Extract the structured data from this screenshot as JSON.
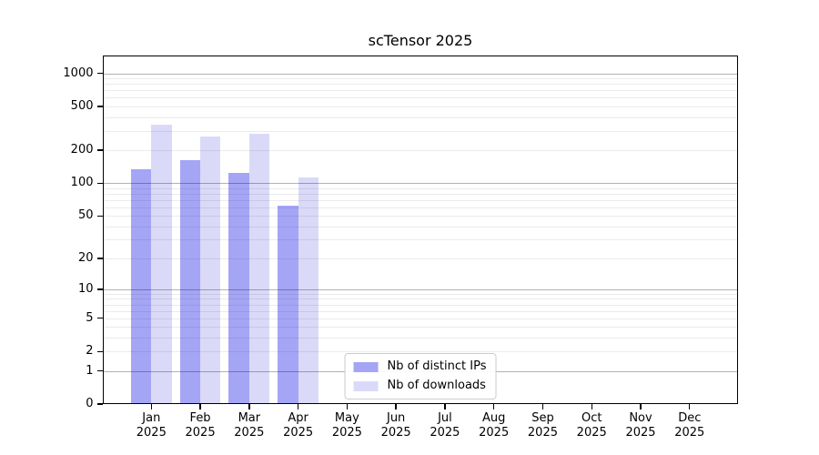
{
  "figure": {
    "background": "#ffffff",
    "axis_color": "#000000",
    "major_grid_color": "#b0b0b0",
    "minor_grid_color": "#ebebeb"
  },
  "chart_data": {
    "type": "bar",
    "title": "scTensor 2025",
    "xlabel": "",
    "ylabel": "",
    "yscale": "log10(value+1)",
    "yticks": [
      0,
      1,
      2,
      5,
      10,
      20,
      50,
      100,
      200,
      500,
      1000
    ],
    "ylim": [
      0,
      1455
    ],
    "grid": "horizontal",
    "legend_position": "lower center",
    "categories": [
      {
        "month": "Jan",
        "year": "2025"
      },
      {
        "month": "Feb",
        "year": "2025"
      },
      {
        "month": "Mar",
        "year": "2025"
      },
      {
        "month": "Apr",
        "year": "2025"
      },
      {
        "month": "May",
        "year": "2025"
      },
      {
        "month": "Jun",
        "year": "2025"
      },
      {
        "month": "Jul",
        "year": "2025"
      },
      {
        "month": "Aug",
        "year": "2025"
      },
      {
        "month": "Sep",
        "year": "2025"
      },
      {
        "month": "Oct",
        "year": "2025"
      },
      {
        "month": "Nov",
        "year": "2025"
      },
      {
        "month": "Dec",
        "year": "2025"
      }
    ],
    "series": [
      {
        "name": "Nb of distinct IPs",
        "color": "#a5a5f6",
        "values": [
          133,
          161,
          125,
          62,
          0,
          0,
          0,
          0,
          0,
          0,
          0,
          0
        ]
      },
      {
        "name": "Nb of downloads",
        "color": "#dadaf8",
        "values": [
          340,
          268,
          284,
          113,
          0,
          0,
          0,
          0,
          0,
          0,
          0,
          0
        ]
      }
    ]
  }
}
